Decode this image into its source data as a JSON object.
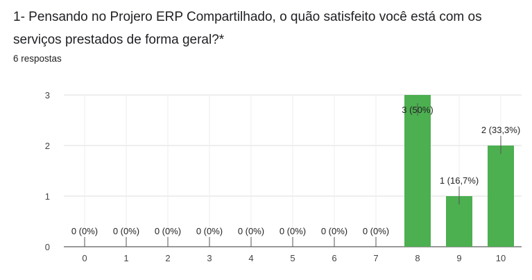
{
  "question": {
    "title": "1- Pensando no Projero ERP Compartilhado, o quão satisfeito você está com os serviços prestados de forma geral?*",
    "responses": "6 respostas"
  },
  "chart_data": {
    "type": "bar",
    "categories": [
      "0",
      "1",
      "2",
      "3",
      "4",
      "5",
      "6",
      "7",
      "8",
      "9",
      "10"
    ],
    "values": [
      0,
      0,
      0,
      0,
      0,
      0,
      0,
      0,
      3,
      1,
      2
    ],
    "data_labels": [
      "0 (0%)",
      "0 (0%)",
      "0 (0%)",
      "0 (0%)",
      "0 (0%)",
      "0 (0%)",
      "0 (0%)",
      "0 (0%)",
      "3 (50%)",
      "1 (16,7%)",
      "2 (33,3%)"
    ],
    "yticks": [
      "0",
      "1",
      "2",
      "3"
    ],
    "ylim": [
      0,
      3
    ],
    "grid": true,
    "bar_color": "#4caf50"
  }
}
